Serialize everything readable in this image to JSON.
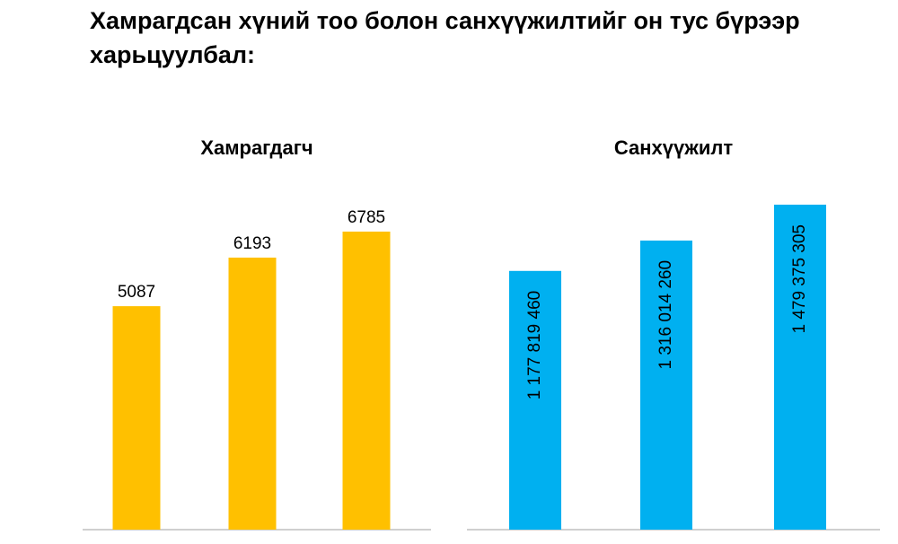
{
  "title": "Хамрагдсан хүний тоо болон санхүүжилтийг он тус бүрээр харьцуулбал:",
  "chart_data": [
    {
      "type": "bar",
      "title": "Хамрагдагч",
      "values": [
        5087,
        6193,
        6785
      ],
      "color": "#ffc000"
    },
    {
      "type": "bar",
      "title": "Санхүүжилт",
      "values": [
        1177819460,
        1316014260,
        1479375305
      ],
      "value_labels": [
        "1 177 819 460",
        "1 316 014 260",
        "1 479 375 305"
      ],
      "color": "#00b0f0"
    }
  ]
}
